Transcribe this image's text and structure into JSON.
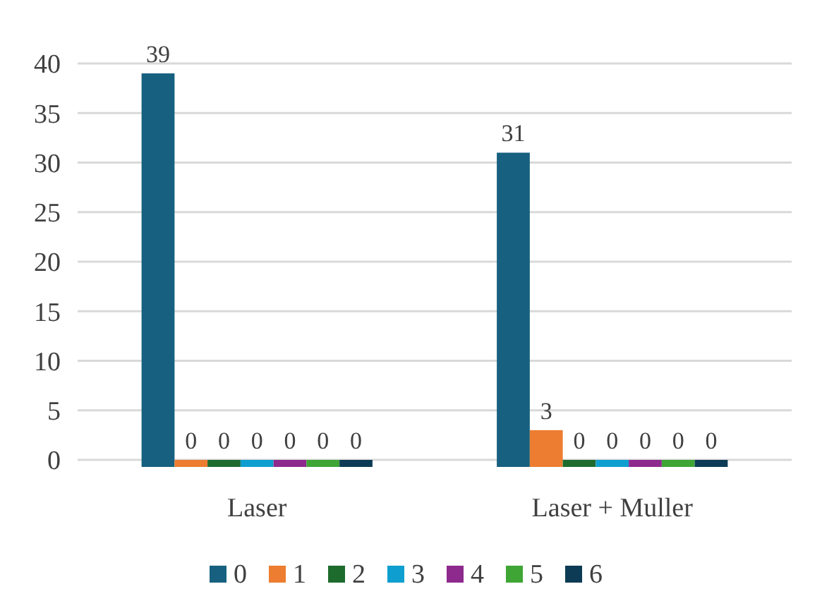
{
  "chart_data": {
    "type": "bar",
    "categories": [
      "Laser",
      "Laser + Muller"
    ],
    "series": [
      {
        "name": "0",
        "color": "#17607f",
        "values": [
          39,
          31
        ]
      },
      {
        "name": "1",
        "color": "#ed7d31",
        "values": [
          0,
          3
        ]
      },
      {
        "name": "2",
        "color": "#1e6b2e",
        "values": [
          0,
          0
        ]
      },
      {
        "name": "3",
        "color": "#0e9fd0",
        "values": [
          0,
          0
        ]
      },
      {
        "name": "4",
        "color": "#8e2a8e",
        "values": [
          0,
          0
        ]
      },
      {
        "name": "5",
        "color": "#3fa535",
        "values": [
          0,
          0
        ]
      },
      {
        "name": "6",
        "color": "#0d3b55",
        "values": [
          0,
          0
        ]
      }
    ],
    "ylim": [
      0,
      40
    ],
    "yticks": [
      0,
      5,
      10,
      15,
      20,
      25,
      30,
      35,
      40
    ],
    "grid": "y",
    "legend": "bottom",
    "data_labels": true
  }
}
